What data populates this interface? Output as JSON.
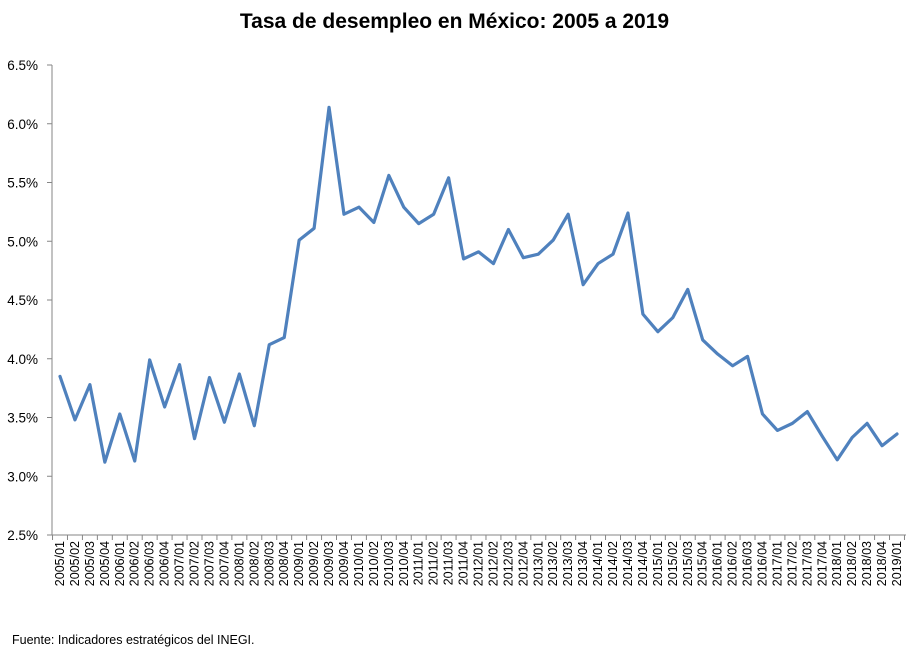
{
  "chart_data": {
    "type": "line",
    "title": "Tasa de desempleo en México: 2005 a 2019",
    "xlabel": "",
    "ylabel": "",
    "ylim": [
      2.5,
      6.5
    ],
    "ytick_step": 0.5,
    "ytick_format": "%",
    "grid": false,
    "legend": "none",
    "line_color": "#4f81bd",
    "categories": [
      "2005/01",
      "2005/02",
      "2005/03",
      "2005/04",
      "2006/01",
      "2006/02",
      "2006/03",
      "2006/04",
      "2007/01",
      "2007/02",
      "2007/03",
      "2007/04",
      "2008/01",
      "2008/02",
      "2008/03",
      "2008/04",
      "2009/01",
      "2009/02",
      "2009/03",
      "2009/04",
      "2010/01",
      "2010/02",
      "2010/03",
      "2010/04",
      "2011/01",
      "2011/02",
      "2011/03",
      "2011/04",
      "2012/01",
      "2012/02",
      "2012/03",
      "2012/04",
      "2013/01",
      "2013/02",
      "2013/03",
      "2013/04",
      "2014/01",
      "2014/02",
      "2014/03",
      "2014/04",
      "2015/01",
      "2015/02",
      "2015/03",
      "2015/04",
      "2016/01",
      "2016/02",
      "2016/03",
      "2016/04",
      "2017/01",
      "2017/02",
      "2017/03",
      "2017/04",
      "2018/01",
      "2018/02",
      "2018/03",
      "2018/04",
      "2019/01"
    ],
    "series": [
      {
        "name": "Tasa de desempleo",
        "values": [
          3.85,
          3.48,
          3.78,
          3.12,
          3.53,
          3.13,
          3.99,
          3.59,
          3.95,
          3.32,
          3.84,
          3.46,
          3.87,
          3.43,
          4.12,
          4.18,
          5.01,
          5.11,
          6.14,
          5.23,
          5.29,
          5.16,
          5.56,
          5.29,
          5.15,
          5.23,
          5.54,
          4.85,
          4.91,
          4.81,
          5.1,
          4.86,
          4.89,
          5.01,
          5.23,
          4.63,
          4.81,
          4.89,
          5.24,
          4.38,
          4.23,
          4.35,
          4.59,
          4.16,
          4.04,
          3.94,
          4.02,
          3.53,
          3.39,
          3.45,
          3.55,
          3.34,
          3.14,
          3.33,
          3.45,
          3.26,
          3.36
        ]
      }
    ]
  },
  "source_note": "Fuente: Indicadores estratégicos del INEGI."
}
